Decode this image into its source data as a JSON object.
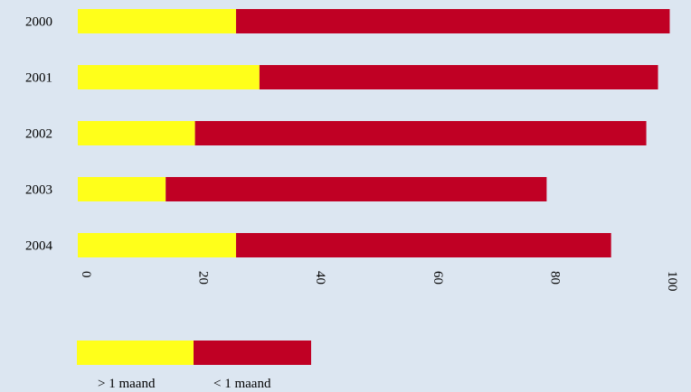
{
  "chart_data": {
    "type": "bar",
    "orientation": "horizontal",
    "stacked": true,
    "categories": [
      "2000",
      "2001",
      "2002",
      "2003",
      "2004"
    ],
    "series": [
      {
        "name": "> 1 maand",
        "color": "#ffff1a",
        "values": [
          27,
          31,
          20,
          15,
          27
        ]
      },
      {
        "name": "< 1 maand",
        "color": "#c00024",
        "values": [
          74,
          68,
          77,
          65,
          64
        ]
      }
    ],
    "xticks": [
      "0",
      "20",
      "40",
      "60",
      "80",
      "100"
    ],
    "xlim": [
      0,
      101.5
    ],
    "title": "",
    "xlabel": "",
    "ylabel": "",
    "grid": false,
    "legend_position": "bottom-left"
  }
}
